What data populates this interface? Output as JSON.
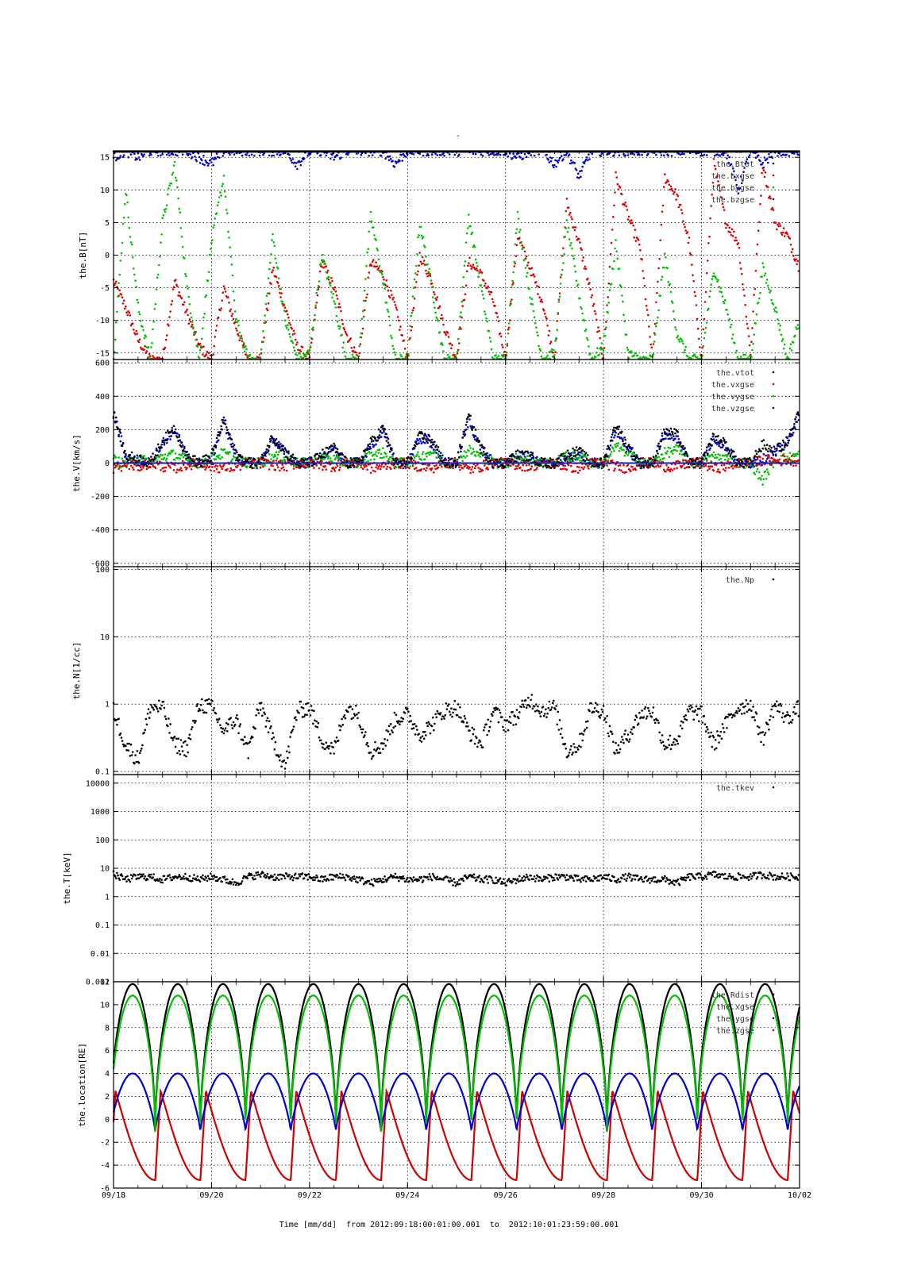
{
  "figure": {
    "top_mark": "-",
    "footer": {
      "xlabel": "Time [mm/dd]",
      "from_label": "from",
      "from_value": "2012:09:18:00:01:00.001",
      "to_label": "to",
      "to_value": "2012:10:01:23:59:00.001"
    }
  },
  "chart_data": [
    {
      "type": "scatter",
      "panel": "magnetic-field",
      "ylabel": "the.B[nT]",
      "yscale": "linear",
      "ylim": [
        -16,
        16
      ],
      "yticks": [
        -15,
        -10,
        -5,
        0,
        5,
        10,
        15
      ],
      "ytick_labels": [
        "-15",
        "-10",
        "-5",
        "0",
        "5",
        "10",
        "15"
      ],
      "legend": [
        "the.Btot",
        "the.bxgse",
        "the.bygse",
        "the.bzgse"
      ],
      "colors": [
        "#000000",
        "#e00000",
        "#00c000",
        "#0000d0"
      ],
      "x": [
        0,
        0.25,
        0.5,
        0.75,
        1,
        1.25,
        1.5,
        1.75,
        2,
        2.25,
        2.5,
        2.75,
        3,
        3.25,
        3.5,
        3.75,
        4,
        4.25,
        4.5,
        4.75,
        5,
        5.25,
        5.5,
        5.75,
        6,
        6.25,
        6.5,
        6.75,
        7,
        7.25,
        7.5,
        7.75,
        8,
        8.25,
        8.5,
        8.75,
        9,
        9.25,
        9.5,
        9.75,
        10,
        10.25,
        10.5,
        10.75,
        11,
        11.25,
        11.5,
        11.75,
        12,
        12.25,
        12.5,
        12.75,
        13,
        13.25,
        13.5,
        13.75,
        14
      ],
      "series": [
        {
          "name": "the.bxgse",
          "values": [
            -4,
            -8,
            -13,
            -16,
            -16,
            -4,
            -9,
            -14,
            -16,
            -5,
            -11,
            -16,
            -16,
            -2,
            -8,
            -14,
            -16,
            -1,
            -5,
            -12,
            -16,
            -1,
            -3,
            -8,
            -16,
            0,
            -4,
            -11,
            -16,
            -1,
            -3,
            -7,
            -16,
            3,
            -2,
            -7,
            -16,
            8,
            2,
            -6,
            -16,
            12,
            6,
            1,
            -16,
            12,
            9,
            2,
            -16,
            14,
            5,
            2,
            -15,
            14,
            5,
            3,
            -2
          ]
        },
        {
          "name": "the.bygse",
          "values": [
            -16,
            10,
            -8,
            -16,
            5,
            14,
            -5,
            -16,
            2,
            12,
            -10,
            -16,
            -16,
            3,
            -10,
            -16,
            -15,
            0,
            -7,
            -16,
            -16,
            6,
            -4,
            -16,
            -16,
            5,
            -5,
            -16,
            -16,
            6,
            -5,
            -16,
            -16,
            6,
            -6,
            -16,
            -15,
            5,
            -6,
            -16,
            -14,
            2,
            -15,
            -16,
            -16,
            0,
            -12,
            -16,
            -16,
            -2,
            -8,
            -16,
            -16,
            -2,
            -8,
            -16,
            -10
          ]
        },
        {
          "name": "the.bzgse",
          "values": [
            15,
            16,
            15,
            16,
            16,
            16,
            16,
            15,
            14,
            16,
            16,
            16,
            16,
            16,
            16,
            14,
            16,
            16,
            15,
            16,
            16,
            16,
            16,
            14,
            16,
            16,
            16,
            16,
            16,
            16,
            16,
            16,
            16,
            15,
            16,
            16,
            14,
            16,
            12,
            16,
            16,
            16,
            16,
            16,
            16,
            16,
            16,
            16,
            16,
            16,
            16,
            10,
            16,
            14,
            16,
            16,
            16
          ]
        },
        {
          "name": "the.Btot",
          "values": [
            16,
            16,
            16,
            16,
            16,
            16,
            16,
            16,
            16,
            16,
            16,
            16,
            16,
            16,
            16,
            16,
            16,
            16,
            16,
            16,
            16,
            16,
            16,
            16,
            16,
            16,
            16,
            16,
            16,
            16,
            16,
            16,
            16,
            16,
            16,
            16,
            16,
            16,
            16,
            16,
            16,
            16,
            16,
            16,
            16,
            16,
            16,
            16,
            16,
            16,
            16,
            16,
            16,
            16,
            16,
            16,
            16
          ]
        }
      ]
    },
    {
      "type": "scatter",
      "panel": "velocity",
      "ylabel": "the.V[km/s]",
      "yscale": "linear",
      "ylim": [
        -620,
        620
      ],
      "yticks": [
        -600,
        -400,
        -200,
        0,
        200,
        400,
        600
      ],
      "ytick_labels": [
        "-600",
        "-400",
        "-200",
        "0",
        "200",
        "400",
        "600"
      ],
      "legend": [
        "the.vtot",
        "the.vxgse",
        "the.vygse",
        "the.vzgse"
      ],
      "colors": [
        "#000000",
        "#e00000",
        "#00c000",
        "#0000d0"
      ],
      "x": [
        0,
        0.25,
        0.5,
        0.75,
        1,
        1.25,
        1.5,
        1.75,
        2,
        2.25,
        2.5,
        2.75,
        3,
        3.25,
        3.5,
        3.75,
        4,
        4.25,
        4.5,
        4.75,
        5,
        5.25,
        5.5,
        5.75,
        6,
        6.25,
        6.5,
        6.75,
        7,
        7.25,
        7.5,
        7.75,
        8,
        8.25,
        8.5,
        8.75,
        9,
        9.25,
        9.5,
        9.75,
        10,
        10.25,
        10.5,
        10.75,
        11,
        11.25,
        11.5,
        11.75,
        12,
        12.25,
        12.5,
        12.75,
        13,
        13.25,
        13.5,
        13.75,
        14
      ],
      "series": [
        {
          "name": "the.vzgse",
          "values": [
            300,
            40,
            10,
            0,
            120,
            200,
            30,
            0,
            20,
            250,
            40,
            0,
            0,
            150,
            60,
            0,
            0,
            40,
            80,
            0,
            0,
            100,
            200,
            0,
            0,
            150,
            120,
            0,
            0,
            260,
            80,
            0,
            0,
            40,
            30,
            0,
            0,
            20,
            50,
            0,
            0,
            200,
            80,
            0,
            0,
            180,
            150,
            0,
            0,
            150,
            100,
            0,
            0,
            20,
            60,
            120,
            300
          ]
        },
        {
          "name": "the.vygse",
          "values": [
            20,
            -10,
            30,
            0,
            40,
            50,
            20,
            0,
            30,
            60,
            20,
            0,
            0,
            40,
            30,
            0,
            0,
            30,
            20,
            0,
            0,
            50,
            60,
            0,
            0,
            40,
            70,
            0,
            0,
            80,
            40,
            0,
            0,
            30,
            20,
            0,
            0,
            40,
            40,
            0,
            0,
            100,
            60,
            0,
            0,
            60,
            80,
            0,
            0,
            40,
            30,
            0,
            0,
            -100,
            20,
            30,
            50
          ]
        },
        {
          "name": "the.vxgse",
          "values": [
            -30,
            -10,
            -20,
            0,
            -20,
            -30,
            -10,
            0,
            -20,
            -30,
            -20,
            0,
            0,
            -10,
            -20,
            0,
            0,
            -10,
            -20,
            0,
            0,
            -30,
            -20,
            0,
            0,
            -20,
            -30,
            0,
            0,
            -40,
            -20,
            0,
            0,
            -10,
            -20,
            0,
            0,
            -20,
            -30,
            0,
            0,
            -20,
            -30,
            0,
            0,
            -20,
            -20,
            0,
            0,
            -30,
            -20,
            0,
            0,
            20,
            10,
            20,
            10
          ]
        },
        {
          "name": "the.vtot",
          "values": [
            300,
            40,
            30,
            0,
            130,
            210,
            40,
            0,
            40,
            260,
            50,
            0,
            0,
            160,
            70,
            0,
            0,
            50,
            90,
            0,
            0,
            120,
            210,
            0,
            0,
            160,
            140,
            0,
            0,
            280,
            90,
            0,
            0,
            50,
            40,
            0,
            0,
            50,
            70,
            0,
            0,
            230,
            100,
            0,
            0,
            190,
            170,
            0,
            0,
            160,
            110,
            0,
            0,
            110,
            70,
            130,
            310
          ]
        }
      ]
    },
    {
      "type": "scatter",
      "panel": "density",
      "ylabel": "the.N[1/cc]",
      "yscale": "log",
      "ylim": [
        0.09,
        110
      ],
      "yticks": [
        0.1,
        1,
        10,
        100
      ],
      "ytick_labels": [
        "0.1",
        "1",
        "10",
        "100"
      ],
      "legend": [
        "the.Np"
      ],
      "colors": [
        "#000000"
      ],
      "x": [
        0,
        0.25,
        0.5,
        0.75,
        1,
        1.25,
        1.5,
        1.75,
        2,
        2.25,
        2.5,
        2.75,
        3,
        3.25,
        3.5,
        3.75,
        4,
        4.25,
        4.5,
        4.75,
        5,
        5.25,
        5.5,
        5.75,
        6,
        6.25,
        6.5,
        6.75,
        7,
        7.25,
        7.5,
        7.75,
        8,
        8.25,
        8.5,
        8.75,
        9,
        9.25,
        9.5,
        9.75,
        10,
        10.25,
        10.5,
        10.75,
        11,
        11.25,
        11.5,
        11.75,
        12,
        12.25,
        12.5,
        12.75,
        13,
        13.25,
        13.5,
        13.75,
        14
      ],
      "series": [
        {
          "name": "the.Np",
          "values": [
            0.8,
            0.25,
            0.15,
            0.9,
            0.9,
            0.25,
            0.22,
            1.0,
            0.9,
            0.4,
            0.6,
            0.2,
            1.0,
            0.3,
            0.12,
            0.8,
            0.9,
            0.3,
            0.2,
            0.9,
            0.7,
            0.2,
            0.25,
            0.6,
            0.7,
            0.35,
            0.5,
            0.8,
            0.9,
            0.4,
            0.25,
            0.8,
            0.5,
            0.7,
            1.2,
            0.8,
            0.9,
            0.2,
            0.25,
            0.9,
            0.8,
            0.2,
            0.35,
            0.7,
            0.8,
            0.25,
            0.3,
            0.8,
            0.7,
            0.25,
            0.5,
            0.9,
            1.0,
            0.3,
            1.0,
            0.6,
            0.9
          ]
        }
      ]
    },
    {
      "type": "scatter",
      "panel": "temperature",
      "ylabel": "the.T[keV]",
      "yscale": "log",
      "ylim": [
        0.001,
        20000
      ],
      "yticks": [
        0.001,
        0.01,
        0.1,
        1,
        10,
        100,
        1000,
        10000
      ],
      "ytick_labels": [
        "0.001",
        "0.01",
        "0.1",
        "1",
        "10",
        "100",
        "1000",
        "10000"
      ],
      "legend": [
        "the.tkev"
      ],
      "colors": [
        "#000000"
      ],
      "x": [
        0,
        0.25,
        0.5,
        0.75,
        1,
        1.25,
        1.5,
        1.75,
        2,
        2.25,
        2.5,
        2.75,
        3,
        3.25,
        3.5,
        3.75,
        4,
        4.25,
        4.5,
        4.75,
        5,
        5.25,
        5.5,
        5.75,
        6,
        6.25,
        6.5,
        6.75,
        7,
        7.25,
        7.5,
        7.75,
        8,
        8.25,
        8.5,
        8.75,
        9,
        9.25,
        9.5,
        9.75,
        10,
        10.25,
        10.5,
        10.75,
        11,
        11.25,
        11.5,
        11.75,
        12,
        12.25,
        12.5,
        12.75,
        13,
        13.25,
        13.5,
        13.75,
        14
      ],
      "series": [
        {
          "name": "the.tkev",
          "values": [
            6,
            4,
            5,
            5,
            4,
            5,
            5,
            4,
            5,
            4,
            3,
            5,
            6,
            5,
            5,
            5,
            5,
            4,
            5,
            5,
            4,
            3,
            4,
            5,
            4,
            4,
            5,
            4,
            3,
            5,
            4,
            4,
            3,
            4,
            5,
            4,
            5,
            5,
            4,
            4,
            5,
            4,
            5,
            4,
            4,
            4,
            3,
            5,
            5,
            6,
            5,
            5,
            5,
            6,
            5,
            5,
            5
          ]
        }
      ]
    },
    {
      "type": "line",
      "panel": "location",
      "ylabel": "the.location[RE]",
      "yscale": "linear",
      "ylim": [
        -6,
        12
      ],
      "yticks": [
        -6,
        -4,
        -2,
        0,
        2,
        4,
        6,
        8,
        10,
        12
      ],
      "ytick_labels": [
        "-6",
        "-4",
        "-2",
        "0",
        "2",
        "4",
        "6",
        "8",
        "10",
        "12"
      ],
      "legend": [
        "the.Rdist",
        "the.xgse",
        "the.ygse",
        "the.zgse"
      ],
      "colors": [
        "#000000",
        "#00c000",
        "#0000d0",
        "#d00000"
      ],
      "orbit_period_days": 0.922,
      "orbit_first_perigee_day": 0.85,
      "series": [
        {
          "name": "the.Rdist",
          "apogee": 11.8,
          "perigee": -1.0
        },
        {
          "name": "the.xgse",
          "apogee": 10.8,
          "perigee": -1.1
        },
        {
          "name": "the.ygse",
          "max": 4.0,
          "min": -1.0
        },
        {
          "name": "the.zgse",
          "max": 2.5,
          "min": -5.3
        }
      ]
    }
  ],
  "x_axis": {
    "xlim_days": [
      0,
      14
    ],
    "ticks_days": [
      0,
      2,
      4,
      6,
      8,
      10,
      12,
      14
    ],
    "tick_labels": [
      "09/18",
      "09/20",
      "09/22",
      "09/24",
      "09/26",
      "09/28",
      "09/30",
      "10/02"
    ]
  }
}
